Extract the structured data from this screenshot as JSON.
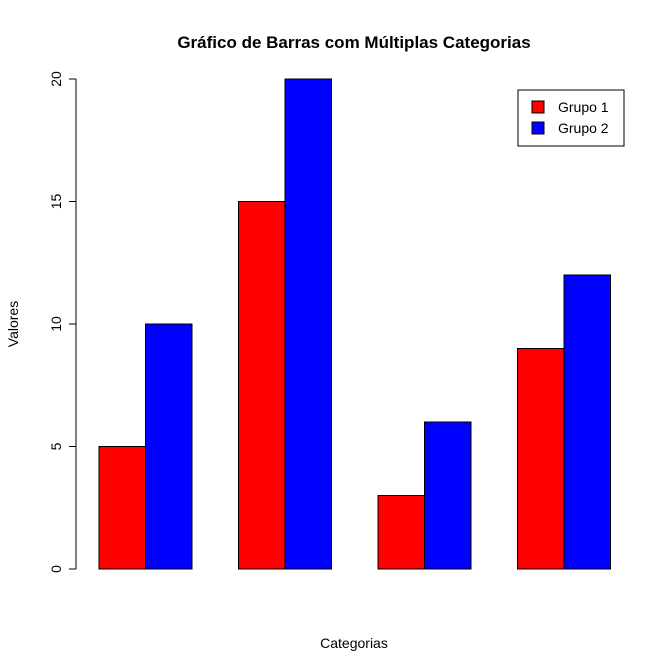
{
  "chart_data": {
    "type": "bar",
    "title": "Gráfico de Barras com Múltiplas Categorias",
    "xlabel": "Categorias",
    "ylabel": "Valores",
    "categories": [
      "",
      "",
      "",
      ""
    ],
    "series": [
      {
        "name": "Grupo 1",
        "color": "#ff0000",
        "values": [
          5,
          15,
          3,
          9
        ]
      },
      {
        "name": "Grupo 2",
        "color": "#0000ff",
        "values": [
          10,
          20,
          6,
          12
        ]
      }
    ],
    "ylim": [
      0,
      20
    ],
    "yticks": [
      0,
      5,
      10,
      15,
      20
    ],
    "grid": false,
    "legend_position": "top-right"
  }
}
